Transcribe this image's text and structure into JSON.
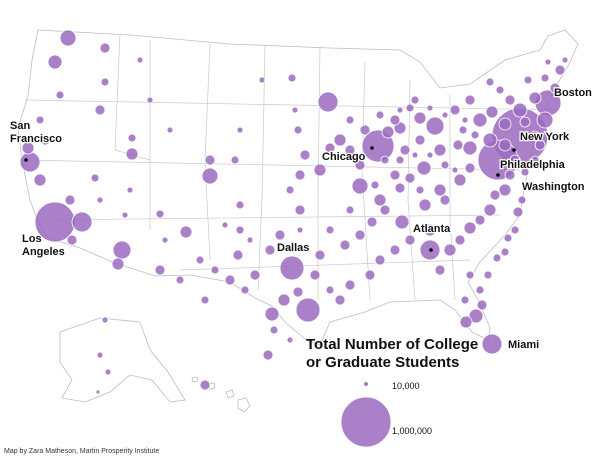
{
  "colors": {
    "bubble_fill": "#9b6bbf",
    "state_border": "#bdbdbd",
    "label_text": "#111111"
  },
  "chart_data": {
    "type": "proportional-symbol-map",
    "legend": {
      "title_lines": [
        "Total Number of College",
        "or Graduate Students"
      ],
      "small_value": 10000,
      "small_label": "10,000",
      "large_value": 1000000,
      "large_label": "1,000,000"
    },
    "labeled_cities": [
      {
        "name": "New York",
        "label_lines": [
          "New York"
        ]
      },
      {
        "name": "Los Angeles",
        "label_lines": [
          "Los",
          "Angeles"
        ]
      },
      {
        "name": "Chicago",
        "label_lines": [
          "Chicago"
        ]
      },
      {
        "name": "Philadelphia",
        "label_lines": [
          "Philadelphia"
        ]
      },
      {
        "name": "Washington",
        "label_lines": [
          "Washington"
        ]
      },
      {
        "name": "Boston",
        "label_lines": [
          "Boston"
        ]
      },
      {
        "name": "San Francisco",
        "label_lines": [
          "San",
          "Francisco"
        ]
      },
      {
        "name": "Dallas",
        "label_lines": [
          "Dallas"
        ]
      },
      {
        "name": "Atlanta",
        "label_lines": [
          "Atlanta"
        ]
      },
      {
        "name": "Miami",
        "label_lines": [
          "Miami"
        ]
      }
    ]
  },
  "credit": "Map by Zara Matheson, Martin Prosperity Institute"
}
